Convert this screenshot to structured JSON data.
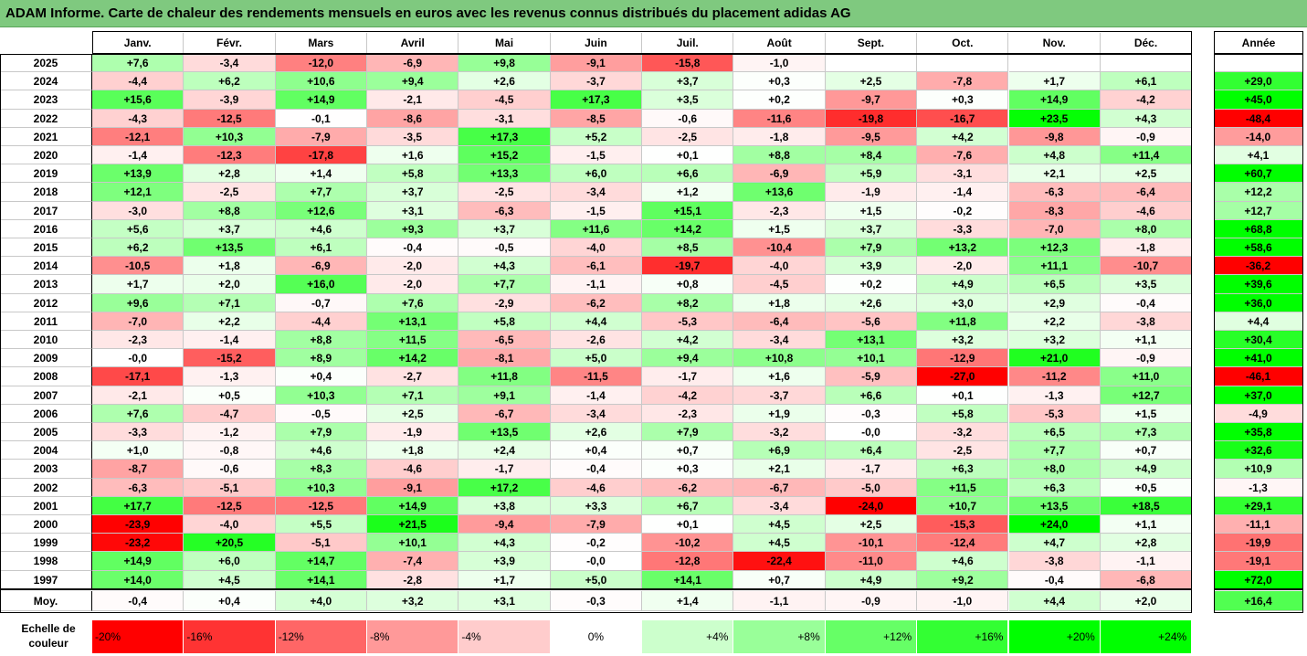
{
  "title": "ADAM Informe. Carte de chaleur des rendements mensuels en euros avec les revenus connus distribués du placement adidas AG",
  "chart_data": {
    "type": "heatmap",
    "columns": [
      "Janv.",
      "Févr.",
      "Mars",
      "Avril",
      "Mai",
      "Juin",
      "Juil.",
      "Août",
      "Sept.",
      "Oct.",
      "Nov.",
      "Déc."
    ],
    "year_column": "Année",
    "rows": [
      {
        "year": "2025",
        "values": [
          7.6,
          -3.4,
          -12.0,
          -6.9,
          9.8,
          -9.1,
          -15.8,
          -1.0,
          null,
          null,
          null,
          null
        ],
        "annual": null
      },
      {
        "year": "2024",
        "values": [
          -4.4,
          6.2,
          10.6,
          9.4,
          2.6,
          -3.7,
          3.7,
          0.3,
          2.5,
          -7.8,
          1.7,
          6.1
        ],
        "annual": 29.0
      },
      {
        "year": "2023",
        "values": [
          15.6,
          -3.9,
          14.9,
          -2.1,
          -4.5,
          17.3,
          3.5,
          0.2,
          -9.7,
          0.3,
          14.9,
          -4.2
        ],
        "annual": 45.0
      },
      {
        "year": "2022",
        "values": [
          -4.3,
          -12.5,
          -0.1,
          -8.6,
          -3.1,
          -8.5,
          -0.6,
          -11.6,
          -19.8,
          -16.7,
          23.5,
          4.3
        ],
        "annual": -48.4
      },
      {
        "year": "2021",
        "values": [
          -12.1,
          10.3,
          -7.9,
          -3.5,
          17.3,
          5.2,
          -2.5,
          -1.8,
          -9.5,
          4.2,
          -9.8,
          -0.9
        ],
        "annual": -14.0
      },
      {
        "year": "2020",
        "values": [
          -1.4,
          -12.3,
          -17.8,
          1.6,
          15.2,
          -1.5,
          0.1,
          8.8,
          8.4,
          -7.6,
          4.8,
          11.4
        ],
        "annual": 4.1
      },
      {
        "year": "2019",
        "values": [
          13.9,
          2.8,
          1.4,
          5.8,
          13.3,
          6.0,
          6.6,
          -6.9,
          5.9,
          -3.1,
          2.1,
          2.5
        ],
        "annual": 60.7
      },
      {
        "year": "2018",
        "values": [
          12.1,
          -2.5,
          7.7,
          3.7,
          -2.5,
          -3.4,
          1.2,
          13.6,
          -1.9,
          -1.4,
          -6.3,
          -6.4
        ],
        "annual": 12.2
      },
      {
        "year": "2017",
        "values": [
          -3.0,
          8.8,
          12.6,
          3.1,
          -6.3,
          -1.5,
          15.1,
          -2.3,
          1.5,
          -0.2,
          -8.3,
          -4.6
        ],
        "annual": 12.7
      },
      {
        "year": "2016",
        "values": [
          5.6,
          3.7,
          4.6,
          9.3,
          3.7,
          11.6,
          14.2,
          1.5,
          3.7,
          -3.3,
          -7.0,
          8.0
        ],
        "annual": 68.8
      },
      {
        "year": "2015",
        "values": [
          6.2,
          13.5,
          6.1,
          -0.4,
          -0.5,
          -4.0,
          8.5,
          -10.4,
          7.9,
          13.2,
          12.3,
          -1.8
        ],
        "annual": 58.6
      },
      {
        "year": "2014",
        "values": [
          -10.5,
          1.8,
          -6.9,
          -2.0,
          4.3,
          -6.1,
          -19.7,
          -4.0,
          3.9,
          -2.0,
          11.1,
          -10.7
        ],
        "annual": -36.2
      },
      {
        "year": "2013",
        "values": [
          1.7,
          2.0,
          16.0,
          -2.0,
          7.7,
          -1.1,
          0.8,
          -4.5,
          0.2,
          4.9,
          6.5,
          3.5
        ],
        "annual": 39.6
      },
      {
        "year": "2012",
        "values": [
          9.6,
          7.1,
          -0.7,
          7.6,
          -2.9,
          -6.2,
          8.2,
          1.8,
          2.6,
          3.0,
          2.9,
          -0.4
        ],
        "annual": 36.0
      },
      {
        "year": "2011",
        "values": [
          -7.0,
          2.2,
          -4.4,
          13.1,
          5.8,
          4.4,
          -5.3,
          -6.4,
          -5.6,
          11.8,
          2.2,
          -3.8
        ],
        "annual": 4.4
      },
      {
        "year": "2010",
        "values": [
          -2.3,
          -1.4,
          8.8,
          11.5,
          -6.5,
          -2.6,
          4.2,
          -3.4,
          13.1,
          3.2,
          3.2,
          1.1
        ],
        "annual": 30.4
      },
      {
        "year": "2009",
        "values": [
          -0.0,
          -15.2,
          8.9,
          14.2,
          -8.1,
          5.0,
          9.4,
          10.8,
          10.1,
          -12.9,
          21.0,
          -0.9
        ],
        "annual": 41.0
      },
      {
        "year": "2008",
        "values": [
          -17.1,
          -1.3,
          0.4,
          -2.7,
          11.8,
          -11.5,
          -1.7,
          1.6,
          -5.9,
          -27.0,
          -11.2,
          11.0
        ],
        "annual": -46.1
      },
      {
        "year": "2007",
        "values": [
          -2.1,
          0.5,
          10.3,
          7.1,
          9.1,
          -1.4,
          -4.2,
          -3.7,
          6.6,
          0.1,
          -1.3,
          12.7
        ],
        "annual": 37.0
      },
      {
        "year": "2006",
        "values": [
          7.6,
          -4.7,
          -0.5,
          2.5,
          -6.7,
          -3.4,
          -2.3,
          1.9,
          -0.3,
          5.8,
          -5.3,
          1.5
        ],
        "annual": -4.9
      },
      {
        "year": "2005",
        "values": [
          -3.3,
          -1.2,
          7.9,
          -1.9,
          13.5,
          2.6,
          7.9,
          -3.2,
          -0.0,
          -3.2,
          6.5,
          7.3
        ],
        "annual": 35.8
      },
      {
        "year": "2004",
        "values": [
          1.0,
          -0.8,
          4.6,
          1.8,
          2.4,
          0.4,
          0.7,
          6.9,
          6.4,
          -2.5,
          7.7,
          0.7
        ],
        "annual": 32.6
      },
      {
        "year": "2003",
        "values": [
          -8.7,
          -0.6,
          8.3,
          -4.6,
          -1.7,
          -0.4,
          0.3,
          2.1,
          -1.7,
          6.3,
          8.0,
          4.9
        ],
        "annual": 10.9
      },
      {
        "year": "2002",
        "values": [
          -6.3,
          -5.1,
          10.3,
          -9.1,
          17.2,
          -4.6,
          -6.2,
          -6.7,
          -5.0,
          11.5,
          6.3,
          0.5
        ],
        "annual": -1.3
      },
      {
        "year": "2001",
        "values": [
          17.7,
          -12.5,
          -12.5,
          14.9,
          3.8,
          3.3,
          6.7,
          -3.4,
          -24.0,
          10.7,
          13.5,
          18.5
        ],
        "annual": 29.1
      },
      {
        "year": "2000",
        "values": [
          -23.9,
          -4.0,
          5.5,
          21.5,
          -9.4,
          -7.9,
          0.1,
          4.5,
          2.5,
          -15.3,
          24.0,
          1.1
        ],
        "annual": -11.1
      },
      {
        "year": "1999",
        "values": [
          -23.2,
          20.5,
          -5.1,
          10.1,
          4.3,
          -0.2,
          -10.2,
          4.5,
          -10.1,
          -12.4,
          4.7,
          2.8
        ],
        "annual": -19.9
      },
      {
        "year": "1998",
        "values": [
          14.9,
          6.0,
          14.7,
          -7.4,
          3.9,
          -0.0,
          -12.8,
          -22.4,
          -11.0,
          4.6,
          -3.8,
          -1.1
        ],
        "annual": -19.1
      },
      {
        "year": "1997",
        "values": [
          14.0,
          4.5,
          14.1,
          -2.8,
          1.7,
          5.0,
          14.1,
          0.7,
          4.9,
          9.2,
          -0.4,
          -6.8
        ],
        "annual": 72.0
      }
    ],
    "average": {
      "label": "Moy.",
      "values": [
        -0.4,
        0.4,
        4.0,
        3.2,
        3.1,
        -0.3,
        1.4,
        -1.1,
        -0.9,
        -1.0,
        4.4,
        2.0
      ],
      "annual": 16.4
    },
    "legend": {
      "label_line1": "Echelle de",
      "label_line2": "couleur",
      "steps": [
        "-20%",
        "-16%",
        "-12%",
        "-8%",
        "-4%",
        "0%",
        "+4%",
        "+8%",
        "+12%",
        "+16%",
        "+20%",
        "+24%"
      ]
    }
  },
  "colors": {
    "title_bg": "#7fc97f",
    "neg_strong": "#ff0000",
    "pos_strong": "#00ff00",
    "neutral": "#ffffff"
  }
}
